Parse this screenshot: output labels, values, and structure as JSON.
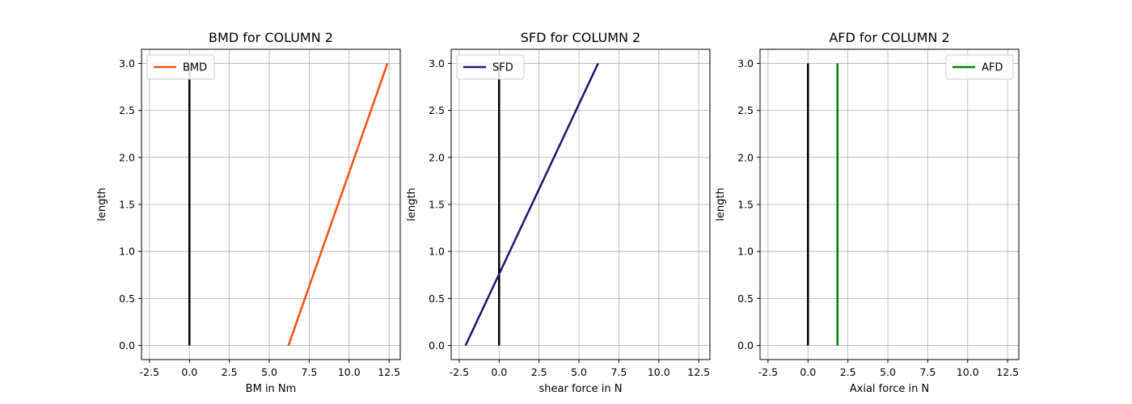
{
  "chart_data": [
    {
      "type": "line",
      "title": "BMD for COLUMN 2",
      "xlabel": "BM in Nm",
      "ylabel": "length",
      "xlim": [
        -3.0,
        13.2
      ],
      "ylim": [
        -0.15,
        3.15
      ],
      "xticks": [
        "-2.5",
        "0.0",
        "2.5",
        "5.0",
        "7.5",
        "10.0",
        "12.5"
      ],
      "yticks": [
        "0.0",
        "0.5",
        "1.0",
        "1.5",
        "2.0",
        "2.5",
        "3.0"
      ],
      "grid": true,
      "legend_position": "upper left",
      "series": [
        {
          "name": "",
          "color": "#000000",
          "x": [
            0,
            0
          ],
          "y": [
            0,
            3
          ]
        },
        {
          "name": "BMD",
          "color": "#f2500f",
          "x": [
            6.2,
            12.4
          ],
          "y": [
            0,
            3
          ]
        }
      ]
    },
    {
      "type": "line",
      "title": "SFD for COLUMN 2",
      "xlabel": "shear force in N",
      "ylabel": "length",
      "xlim": [
        -3.0,
        13.2
      ],
      "ylim": [
        -0.15,
        3.15
      ],
      "xticks": [
        "-2.5",
        "0.0",
        "2.5",
        "5.0",
        "7.5",
        "10.0",
        "12.5"
      ],
      "yticks": [
        "0.0",
        "0.5",
        "1.0",
        "1.5",
        "2.0",
        "2.5",
        "3.0"
      ],
      "grid": true,
      "legend_position": "upper left",
      "series": [
        {
          "name": "",
          "color": "#000000",
          "x": [
            0,
            0
          ],
          "y": [
            0,
            3
          ]
        },
        {
          "name": "SFD",
          "color": "#191970",
          "x": [
            -2.1,
            6.2
          ],
          "y": [
            0,
            3
          ]
        }
      ]
    },
    {
      "type": "line",
      "title": "AFD for COLUMN 2",
      "xlabel": "Axial force in N",
      "ylabel": "length",
      "xlim": [
        -3.0,
        13.2
      ],
      "ylim": [
        -0.15,
        3.15
      ],
      "xticks": [
        "-2.5",
        "0.0",
        "2.5",
        "5.0",
        "7.5",
        "10.0",
        "12.5"
      ],
      "yticks": [
        "0.0",
        "0.5",
        "1.0",
        "1.5",
        "2.0",
        "2.5",
        "3.0"
      ],
      "grid": true,
      "legend_position": "upper right",
      "series": [
        {
          "name": "",
          "color": "#000000",
          "x": [
            0,
            0
          ],
          "y": [
            0,
            3
          ]
        },
        {
          "name": "AFD",
          "color": "#008000",
          "x": [
            1.85,
            1.85
          ],
          "y": [
            0,
            3
          ]
        }
      ]
    }
  ]
}
